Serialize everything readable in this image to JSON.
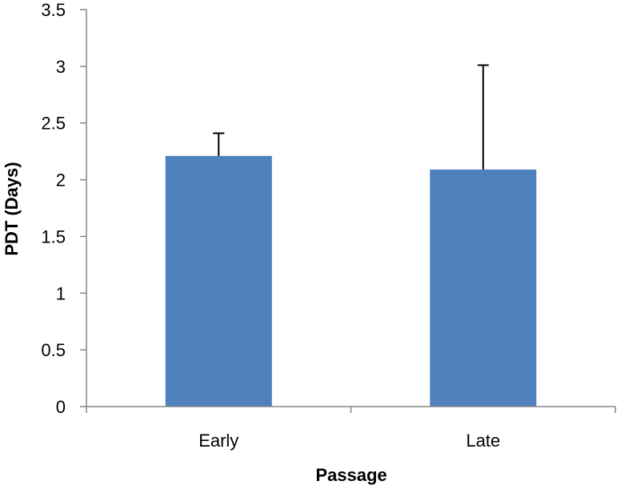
{
  "colors": {
    "bar": "#4F81BD",
    "axis": "#868686",
    "error_bar": "#000000",
    "background": "#ffffff"
  },
  "chart_data": {
    "type": "bar",
    "title": "",
    "xlabel": "Passage",
    "ylabel": "PDT (Days)",
    "categories": [
      "Early",
      "Late"
    ],
    "values": [
      2.21,
      2.09
    ],
    "error_plus": [
      0.2,
      0.92
    ],
    "ylim": [
      0,
      3.5
    ],
    "yticks": [
      "0",
      "0.5",
      "1",
      "1.5",
      "2",
      "2.5",
      "3",
      "3.5"
    ],
    "grid": false,
    "legend": "none"
  }
}
